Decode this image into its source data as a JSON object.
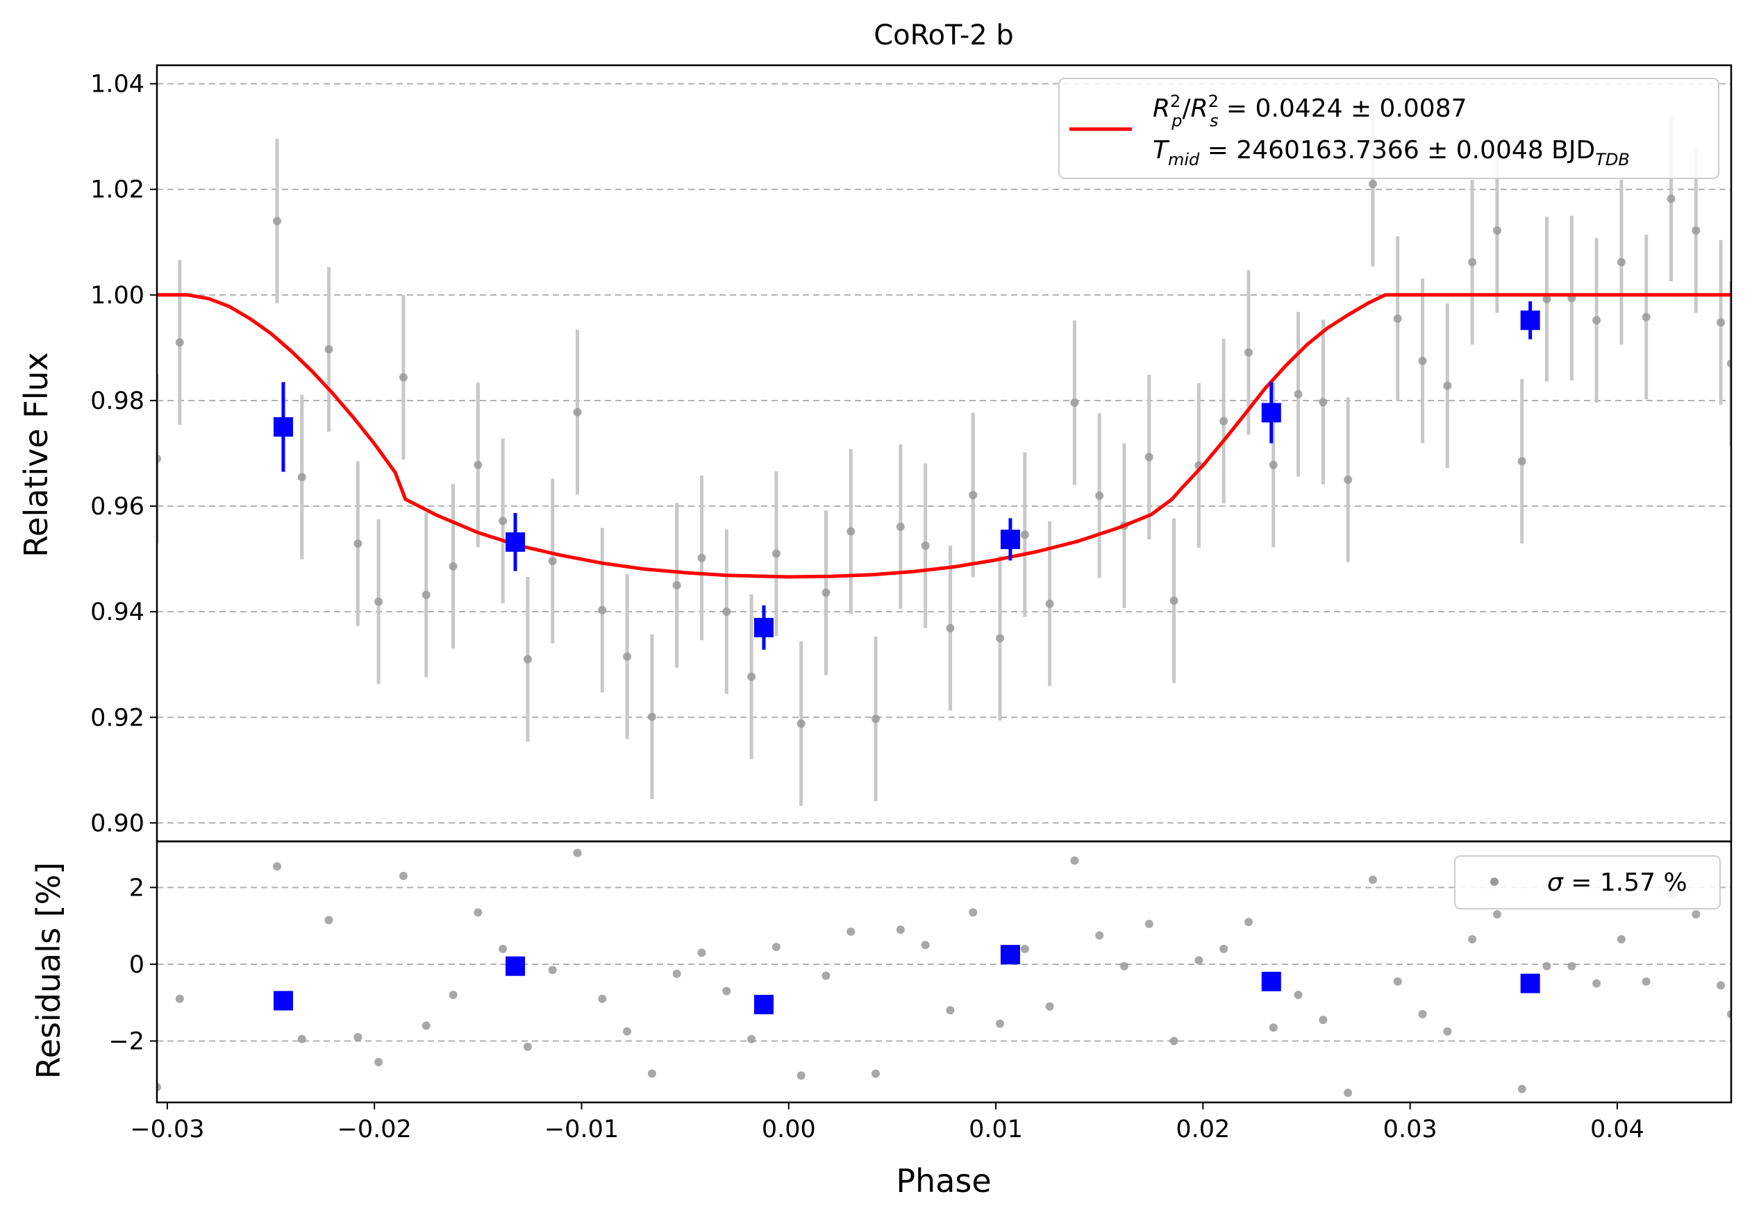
{
  "colors": {
    "model": "#ff0000",
    "binned": "#0000ff",
    "raw": "#999999",
    "errorbar": "#c8c8c8",
    "grid": "#b0b0b0"
  },
  "chart_data": [
    {
      "type": "scatter",
      "panel": "main",
      "title": "CoRoT-2 b",
      "xlabel": "",
      "ylabel": "Relative Flux",
      "xlim": [
        -0.0305,
        0.0455
      ],
      "ylim": [
        0.8965,
        1.0435
      ],
      "grid": "horizontal dashed",
      "y_ticks": [
        0.9,
        0.92,
        0.94,
        0.96,
        0.98,
        1.0,
        1.02,
        1.04
      ],
      "y_tick_labels": [
        "0.90",
        "0.92",
        "0.94",
        "0.96",
        "0.98",
        "1.00",
        "1.02",
        "1.04"
      ],
      "legend_position": "top-right",
      "legend": {
        "line1": {
          "r1": "R",
          "r1_sup": "2",
          "r1_sub": "p",
          "slash": "/",
          "r2": "R",
          "r2_sup": "2",
          "r2_sub": "s",
          "value": " = 0.0424 ± 0.0087"
        },
        "line2": {
          "t": "T",
          "t_sub": "mid",
          "value": " = 2460163.7366 ± 0.0048 BJD",
          "unit_sub": "TDB"
        }
      },
      "series": [
        {
          "name": "model",
          "kind": "line",
          "color": "#ff0000",
          "x": [
            -0.0305,
            -0.029,
            -0.028,
            -0.027,
            -0.026,
            -0.025,
            -0.024,
            -0.023,
            -0.022,
            -0.021,
            -0.02,
            -0.019,
            -0.0185,
            -0.017,
            -0.015,
            -0.013,
            -0.011,
            -0.009,
            -0.007,
            -0.005,
            -0.003,
            -0.001,
            0.0,
            0.002,
            0.004,
            0.006,
            0.008,
            0.01,
            0.012,
            0.014,
            0.016,
            0.0175,
            0.0185,
            0.019,
            0.02,
            0.021,
            0.022,
            0.023,
            0.024,
            0.025,
            0.026,
            0.027,
            0.028,
            0.0288,
            0.03,
            0.0455
          ],
          "y": [
            1.0,
            1.0,
            0.9993,
            0.9978,
            0.9955,
            0.9927,
            0.9893,
            0.9855,
            0.9813,
            0.9767,
            0.9718,
            0.9664,
            0.9613,
            0.9583,
            0.955,
            0.9525,
            0.9507,
            0.9492,
            0.9481,
            0.9474,
            0.9469,
            0.9467,
            0.9466,
            0.9467,
            0.947,
            0.9476,
            0.9485,
            0.9498,
            0.9514,
            0.9534,
            0.956,
            0.9584,
            0.9613,
            0.9635,
            0.9677,
            0.9724,
            0.9773,
            0.9823,
            0.9866,
            0.9905,
            0.9937,
            0.9962,
            0.9985,
            1.0,
            1.0,
            1.0
          ]
        },
        {
          "name": "raw",
          "kind": "errorbar-points",
          "x": [
            -0.0305,
            -0.0294,
            -0.0247,
            -0.0235,
            -0.0222,
            -0.0208,
            -0.0198,
            -0.0175,
            -0.0186,
            -0.0162,
            -0.015,
            -0.0138,
            -0.0126,
            -0.0114,
            -0.0102,
            -0.009,
            -0.0078,
            -0.0066,
            -0.0054,
            -0.0042,
            -0.003,
            -0.0018,
            -0.0006,
            0.0006,
            0.0018,
            0.003,
            0.0042,
            0.0054,
            0.0066,
            0.0078,
            0.0089,
            0.0102,
            0.0114,
            0.0126,
            0.0138,
            0.015,
            0.0162,
            0.0174,
            0.0186,
            0.0198,
            0.021,
            0.0222,
            0.0234,
            0.0246,
            0.0258,
            0.027,
            0.0282,
            0.0294,
            0.0306,
            0.0318,
            0.033,
            0.0342,
            0.0354,
            0.0366,
            0.0378,
            0.039,
            0.0402,
            0.0414,
            0.0426,
            0.0438,
            0.045,
            0.0455
          ],
          "y": [
            0.969,
            0.991,
            1.014,
            0.9655,
            0.9897,
            0.9529,
            0.9419,
            0.9432,
            0.9844,
            0.9486,
            0.9678,
            0.9572,
            0.931,
            0.9496,
            0.9778,
            0.9403,
            0.9315,
            0.9201,
            0.945,
            0.9502,
            0.94,
            0.9277,
            0.951,
            0.9188,
            0.9436,
            0.9552,
            0.9197,
            0.9561,
            0.9525,
            0.9369,
            0.9621,
            0.935,
            0.9546,
            0.9415,
            0.9796,
            0.962,
            0.9563,
            0.9693,
            0.9421,
            0.9677,
            0.9761,
            0.9891,
            0.9678,
            0.9812,
            0.9797,
            0.965,
            1.021,
            0.9955,
            0.9875,
            0.9828,
            1.0062,
            1.0122,
            0.9685,
            0.9992,
            0.9994,
            0.9952,
            1.0062,
            0.9958,
            1.0182,
            1.0122,
            0.9948,
            0.987
          ],
          "err": [
            0.016,
            0.0156,
            0.0156,
            0.0156,
            0.0156,
            0.0156,
            0.0156,
            0.0156,
            0.0156,
            0.0156,
            0.0156,
            0.0156,
            0.0156,
            0.0156,
            0.0156,
            0.0156,
            0.0156,
            0.0156,
            0.0156,
            0.0156,
            0.0156,
            0.0156,
            0.0156,
            0.0156,
            0.0156,
            0.0156,
            0.0156,
            0.0156,
            0.0156,
            0.0156,
            0.0156,
            0.0156,
            0.0156,
            0.0156,
            0.0156,
            0.0156,
            0.0156,
            0.0156,
            0.0156,
            0.0156,
            0.0156,
            0.0156,
            0.0156,
            0.0156,
            0.0156,
            0.0156,
            0.0156,
            0.0156,
            0.0156,
            0.0156,
            0.0156,
            0.0156,
            0.0156,
            0.0156,
            0.0156,
            0.0156,
            0.0156,
            0.0156,
            0.0156,
            0.0156,
            0.0156,
            0.0156
          ]
        },
        {
          "name": "binned",
          "kind": "errorbar-squares",
          "color": "#0000ff",
          "x": [
            -0.0244,
            -0.0132,
            -0.0012,
            0.0107,
            0.0233,
            0.0358
          ],
          "y": [
            0.975,
            0.9532,
            0.937,
            0.9537,
            0.9777,
            0.9952
          ],
          "err": [
            0.0085,
            0.0055,
            0.0042,
            0.004,
            0.0058,
            0.0036
          ]
        }
      ]
    },
    {
      "type": "scatter",
      "panel": "residuals",
      "xlabel": "Phase",
      "ylabel": "Residuals [%]",
      "xlim": [
        -0.0305,
        0.0455
      ],
      "ylim": [
        -3.6,
        3.2
      ],
      "grid": "horizontal dashed",
      "x_ticks": [
        -0.03,
        -0.02,
        -0.01,
        0.0,
        0.01,
        0.02,
        0.03,
        0.04
      ],
      "x_tick_labels": [
        "−0.03",
        "−0.02",
        "−0.01",
        "0.00",
        "0.01",
        "0.02",
        "0.03",
        "0.04"
      ],
      "y_ticks": [
        -2,
        0,
        2
      ],
      "y_tick_labels": [
        "−2",
        "0",
        "2"
      ],
      "legend_position": "top-right",
      "legend": {
        "sigma": "σ",
        "value": " = 1.57 %"
      },
      "series": [
        {
          "name": "raw",
          "kind": "points",
          "x": [
            -0.0305,
            -0.0294,
            -0.0247,
            -0.0235,
            -0.0222,
            -0.0208,
            -0.0198,
            -0.0175,
            -0.0186,
            -0.0162,
            -0.015,
            -0.0138,
            -0.0126,
            -0.0114,
            -0.0102,
            -0.009,
            -0.0078,
            -0.0066,
            -0.0054,
            -0.0042,
            -0.003,
            -0.0018,
            -0.0006,
            0.0006,
            0.0018,
            0.003,
            0.0042,
            0.0054,
            0.0066,
            0.0078,
            0.0089,
            0.0102,
            0.0114,
            0.0126,
            0.0138,
            0.015,
            0.0162,
            0.0174,
            0.0186,
            0.0198,
            0.021,
            0.0222,
            0.0234,
            0.0246,
            0.0258,
            0.027,
            0.0282,
            0.0294,
            0.0306,
            0.0318,
            0.033,
            0.0342,
            0.0354,
            0.0366,
            0.0378,
            0.039,
            0.0402,
            0.0414,
            0.0426,
            0.0438,
            0.045,
            0.0455
          ],
          "y": [
            -3.2,
            -0.9,
            2.55,
            -1.95,
            1.15,
            -1.9,
            -2.55,
            -1.6,
            2.3,
            -0.8,
            1.35,
            0.4,
            -2.15,
            -0.15,
            2.9,
            -0.9,
            -1.75,
            -2.85,
            -0.25,
            0.3,
            -0.7,
            -1.95,
            0.45,
            -2.9,
            -0.3,
            0.85,
            -2.85,
            0.9,
            0.5,
            -1.2,
            1.35,
            -1.55,
            0.4,
            -1.1,
            2.7,
            0.75,
            -0.05,
            1.05,
            -2.0,
            0.1,
            0.4,
            1.1,
            -1.65,
            -0.8,
            -1.45,
            -3.35,
            2.2,
            -0.45,
            -1.3,
            -1.75,
            0.65,
            1.3,
            -3.25,
            -0.05,
            -0.05,
            -0.5,
            0.65,
            -0.45,
            1.85,
            1.3,
            -0.55,
            -1.3
          ]
        },
        {
          "name": "binned",
          "kind": "squares",
          "color": "#0000ff",
          "x": [
            -0.0244,
            -0.0132,
            -0.0012,
            0.0107,
            0.0233,
            0.0358
          ],
          "y": [
            -0.95,
            -0.05,
            -1.05,
            0.25,
            -0.45,
            -0.5
          ]
        }
      ]
    }
  ]
}
